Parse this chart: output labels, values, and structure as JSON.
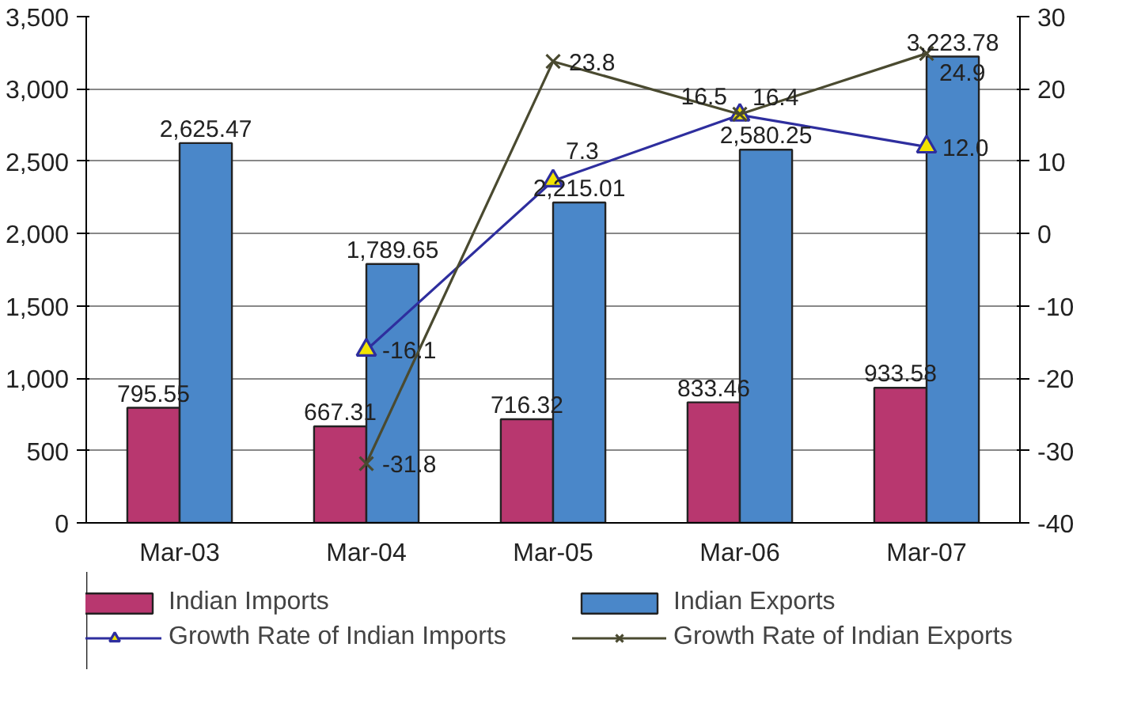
{
  "chart_data": {
    "type": "bar",
    "categories": [
      "Mar-03",
      "Mar-04",
      "Mar-05",
      "Mar-06",
      "Mar-07"
    ],
    "series": [
      {
        "name": "Indian Imports",
        "color": "#b8376f",
        "values": [
          795.55,
          667.31,
          716.32,
          833.46,
          933.58
        ],
        "value_labels": [
          "795.55",
          "667.31",
          "716.32",
          "833.46",
          "933.58"
        ]
      },
      {
        "name": "Indian Exports",
        "color": "#4a87c9",
        "values": [
          2625.47,
          1789.65,
          2215.01,
          2580.25,
          3223.78
        ],
        "value_labels": [
          "2,625.47",
          "1,789.65",
          "2,215.01",
          "2,580.25",
          "3,223.78"
        ]
      },
      {
        "name": "Growth Rate of Indian Imports",
        "type": "line",
        "axis": "y2",
        "marker": "triangle",
        "color": "#2e2e9e",
        "values": [
          null,
          -16.1,
          7.3,
          16.4,
          12.0
        ],
        "value_labels": [
          null,
          "-16.1",
          "7.3",
          "16.4",
          "12.0"
        ]
      },
      {
        "name": "Growth Rate of Indian Exports",
        "type": "line",
        "axis": "y2",
        "marker": "cross",
        "color": "#4a4a30",
        "values": [
          null,
          -31.8,
          23.8,
          16.5,
          24.9
        ],
        "value_labels": [
          null,
          "-31.8",
          "23.8",
          "16.5",
          "24.9"
        ]
      }
    ],
    "ylim": [
      0,
      3500
    ],
    "yticks": [
      {
        "value": 0,
        "label": "0"
      },
      {
        "value": 500,
        "label": "500"
      },
      {
        "value": 1000,
        "label": "1,000"
      },
      {
        "value": 1500,
        "label": "1,500"
      },
      {
        "value": 2000,
        "label": "2,000"
      },
      {
        "value": 2500,
        "label": "2,500"
      },
      {
        "value": 3000,
        "label": "3,000"
      },
      {
        "value": 3500,
        "label": "3,500"
      }
    ],
    "y2lim": [
      -40,
      30
    ],
    "y2ticks": [
      -40,
      -30,
      -20,
      -10,
      0,
      10,
      20,
      30
    ],
    "grid": "y",
    "legend": "bottom"
  }
}
